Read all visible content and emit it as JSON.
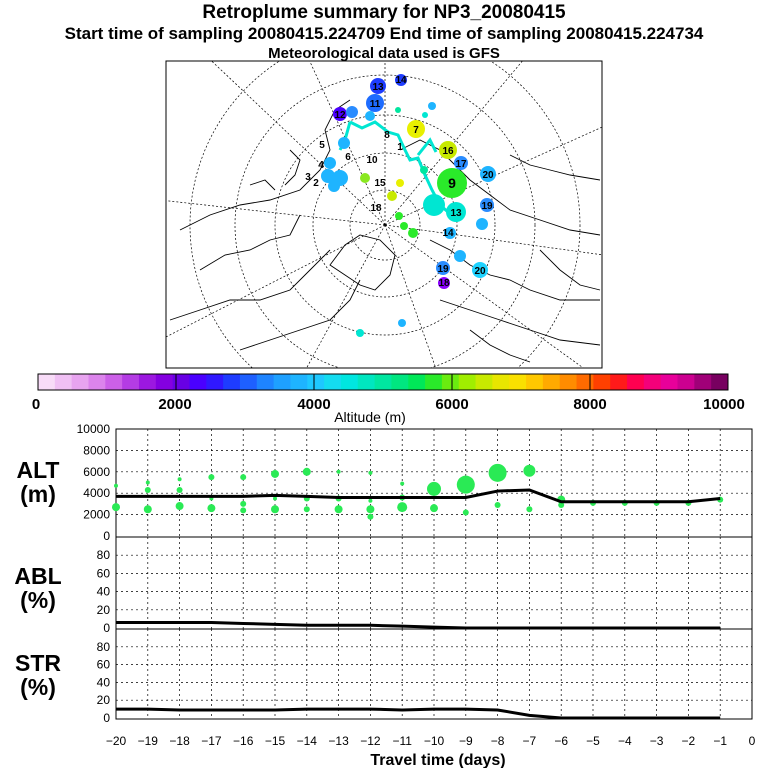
{
  "header": {
    "title": "Retroplume summary for NP3_20080415",
    "sampling_line": "Start time of sampling 20080415.224709     End time of sampling 20080415.224734",
    "meteo_line": "Meteorological data used is GFS"
  },
  "map": {
    "labels": [
      {
        "text": "13",
        "color": "#1e3cff"
      },
      {
        "text": "14",
        "color": "#1e3cff"
      },
      {
        "text": "11",
        "color": "#1e6cff"
      },
      {
        "text": "12",
        "color": "#4a00ff"
      },
      {
        "text": "7",
        "color": "#e8f000"
      },
      {
        "text": "16",
        "color": "#c8ea00"
      },
      {
        "text": "17",
        "color": "#2a8cff"
      },
      {
        "text": "20",
        "color": "#1eb4ff"
      },
      {
        "text": "9",
        "color": "#2aea2a"
      },
      {
        "text": "13",
        "color": "#00e6d2"
      },
      {
        "text": "19",
        "color": "#2a8cff"
      },
      {
        "text": "5",
        "color": "#1eb4ff"
      },
      {
        "text": "4",
        "color": "#1eb4ff"
      },
      {
        "text": "3",
        "color": "#1eb4ff"
      },
      {
        "text": "2",
        "color": "#1eb4ff"
      },
      {
        "text": "10",
        "color": "#ffffff"
      },
      {
        "text": "15",
        "color": "#ffffff"
      },
      {
        "text": "18",
        "color": "#ffffff"
      },
      {
        "text": "19",
        "color": "#1eb4ff"
      },
      {
        "text": "20",
        "color": "#1ed2ff"
      },
      {
        "text": "8",
        "color": "#ffffff"
      },
      {
        "text": "6",
        "color": "#ffffff"
      },
      {
        "text": "1",
        "color": "#2aea2a"
      },
      {
        "text": "14",
        "color": "#00e6d2"
      },
      {
        "text": "18",
        "color": "#8a00ff"
      }
    ]
  },
  "colorbar": {
    "tick_labels": [
      "0",
      "2000",
      "4000",
      "6000",
      "8000",
      "10000"
    ],
    "title": "Altitude (m)",
    "colors": [
      "#f8dcf8",
      "#f0c0f4",
      "#e8a4f0",
      "#dc84ec",
      "#cc60e8",
      "#b43ce4",
      "#9c18e0",
      "#8400e0",
      "#6800e4",
      "#4a00ff",
      "#3018ff",
      "#1e3cff",
      "#1e60ff",
      "#1e84ff",
      "#1ea0ff",
      "#1eb4ff",
      "#1ec8ff",
      "#14dcf0",
      "#00e6e0",
      "#00e6c0",
      "#00e6a0",
      "#00e680",
      "#00e858",
      "#2aea2a",
      "#6aec10",
      "#a0ee00",
      "#c8ea00",
      "#e8e600",
      "#fae000",
      "#ffc800",
      "#ffaa00",
      "#ff8c00",
      "#ff6a00",
      "#ff4000",
      "#ff1a1a",
      "#ff0050",
      "#f4007a",
      "#e8009a",
      "#cc0090",
      "#a00078",
      "#780060"
    ]
  },
  "chart_data": [
    {
      "type": "line",
      "name": "ALT",
      "ylabel": "ALT\n(m)",
      "ylabel_line1": "ALT",
      "ylabel_line2": "(m)",
      "y_ticks": [
        0,
        2000,
        4000,
        6000,
        8000,
        10000
      ],
      "ylim": [
        0,
        10000
      ],
      "xlim": [
        -20,
        0
      ],
      "series_median": {
        "x": [
          -20,
          -19,
          -18,
          -17,
          -16,
          -15,
          -14,
          -13,
          -12,
          -11,
          -10,
          -9,
          -8,
          -7,
          -6,
          -5,
          -4,
          -3,
          -2,
          -1
        ],
        "y": [
          3700,
          3700,
          3700,
          3700,
          3700,
          3800,
          3700,
          3600,
          3600,
          3600,
          3600,
          3600,
          4200,
          4300,
          3200,
          3200,
          3200,
          3200,
          3200,
          3500
        ]
      },
      "clusters": [
        {
          "x": -20,
          "y": 4700,
          "s": 2
        },
        {
          "x": -20,
          "y": 2700,
          "s": 4
        },
        {
          "x": -19,
          "y": 5000,
          "s": 2
        },
        {
          "x": -19,
          "y": 4300,
          "s": 3
        },
        {
          "x": -19,
          "y": 2500,
          "s": 4
        },
        {
          "x": -18,
          "y": 5300,
          "s": 2
        },
        {
          "x": -18,
          "y": 4300,
          "s": 3
        },
        {
          "x": -18,
          "y": 2800,
          "s": 4
        },
        {
          "x": -17,
          "y": 5500,
          "s": 3
        },
        {
          "x": -17,
          "y": 3500,
          "s": 2
        },
        {
          "x": -17,
          "y": 2600,
          "s": 4
        },
        {
          "x": -16,
          "y": 5500,
          "s": 3
        },
        {
          "x": -16,
          "y": 3000,
          "s": 3
        },
        {
          "x": -16,
          "y": 2400,
          "s": 3
        },
        {
          "x": -15,
          "y": 5800,
          "s": 4
        },
        {
          "x": -15,
          "y": 3500,
          "s": 2
        },
        {
          "x": -15,
          "y": 2500,
          "s": 4
        },
        {
          "x": -14,
          "y": 6000,
          "s": 4
        },
        {
          "x": -14,
          "y": 3500,
          "s": 3
        },
        {
          "x": -14,
          "y": 2500,
          "s": 3
        },
        {
          "x": -13,
          "y": 6000,
          "s": 2
        },
        {
          "x": -13,
          "y": 3500,
          "s": 3
        },
        {
          "x": -13,
          "y": 2500,
          "s": 4
        },
        {
          "x": -12,
          "y": 5900,
          "s": 2
        },
        {
          "x": -12,
          "y": 3300,
          "s": 2
        },
        {
          "x": -12,
          "y": 2500,
          "s": 4
        },
        {
          "x": -12,
          "y": 1800,
          "s": 3
        },
        {
          "x": -11,
          "y": 4900,
          "s": 2
        },
        {
          "x": -11,
          "y": 3600,
          "s": 3
        },
        {
          "x": -11,
          "y": 2700,
          "s": 5
        },
        {
          "x": -10,
          "y": 4400,
          "s": 7
        },
        {
          "x": -10,
          "y": 2600,
          "s": 4
        },
        {
          "x": -9,
          "y": 4800,
          "s": 9
        },
        {
          "x": -9,
          "y": 2200,
          "s": 3
        },
        {
          "x": -8,
          "y": 5900,
          "s": 9
        },
        {
          "x": -8,
          "y": 2900,
          "s": 3
        },
        {
          "x": -7,
          "y": 6100,
          "s": 6
        },
        {
          "x": -7,
          "y": 2500,
          "s": 3
        },
        {
          "x": -6,
          "y": 3400,
          "s": 4
        },
        {
          "x": -6,
          "y": 2900,
          "s": 3
        },
        {
          "x": -5,
          "y": 3100,
          "s": 3
        },
        {
          "x": -4,
          "y": 3100,
          "s": 3
        },
        {
          "x": -3,
          "y": 3100,
          "s": 3
        },
        {
          "x": -2,
          "y": 3100,
          "s": 3
        },
        {
          "x": -1,
          "y": 3400,
          "s": 3
        }
      ],
      "marker_color": "#2aea55"
    },
    {
      "type": "line",
      "name": "ABL",
      "ylabel_line1": "ABL",
      "ylabel_line2": "(%)",
      "y_ticks": [
        0,
        20,
        40,
        60,
        80
      ],
      "ylim": [
        0,
        100
      ],
      "xlim": [
        -20,
        0
      ],
      "x": [
        -20,
        -19,
        -18,
        -17,
        -16,
        -15,
        -14,
        -13,
        -12,
        -11,
        -10,
        -9,
        -8,
        -7,
        -6,
        -5,
        -4,
        -3,
        -2,
        -1
      ],
      "y": [
        6,
        6,
        6,
        6,
        5,
        4,
        3,
        3,
        3,
        2,
        1,
        0,
        0,
        0,
        0,
        0,
        0,
        0,
        0,
        0
      ]
    },
    {
      "type": "line",
      "name": "STR",
      "ylabel_line1": "STR",
      "ylabel_line2": "(%)",
      "y_ticks": [
        0,
        20,
        40,
        60,
        80
      ],
      "ylim": [
        0,
        100
      ],
      "xlim": [
        -20,
        0
      ],
      "x": [
        -20,
        -19,
        -18,
        -17,
        -16,
        -15,
        -14,
        -13,
        -12,
        -11,
        -10,
        -9,
        -8,
        -7,
        -6,
        -5,
        -4,
        -3,
        -2,
        -1
      ],
      "y": [
        10,
        10,
        9,
        9,
        9,
        9,
        10,
        10,
        10,
        9,
        10,
        10,
        9,
        3,
        0,
        0,
        0,
        0,
        0,
        0
      ]
    }
  ],
  "x_axis": {
    "ticks": [
      "−20",
      "−19",
      "−18",
      "−17",
      "−16",
      "−15",
      "−14",
      "−13",
      "−12",
      "−11",
      "−10",
      "−9",
      "−8",
      "−7",
      "−6",
      "−5",
      "−4",
      "−3",
      "−2",
      "−1",
      "0"
    ],
    "xlabel": "Travel time (days)"
  }
}
